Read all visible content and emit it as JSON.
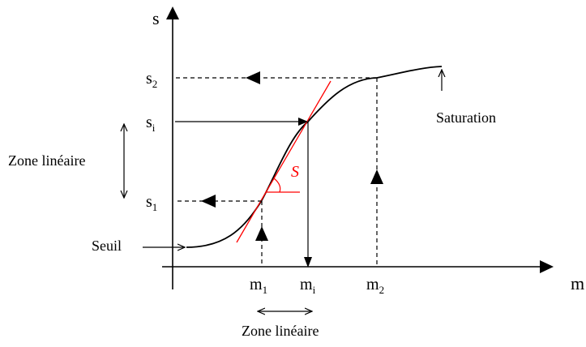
{
  "axes": {
    "y_label": "s",
    "x_label": "m"
  },
  "y_ticks": [
    {
      "base": "s",
      "sub": "2"
    },
    {
      "base": "s",
      "sub": "i"
    },
    {
      "base": "s",
      "sub": "1"
    }
  ],
  "x_ticks": [
    {
      "base": "m",
      "sub": "1"
    },
    {
      "base": "m",
      "sub": "i"
    },
    {
      "base": "m",
      "sub": "2"
    }
  ],
  "annotations": {
    "saturation": "Saturation",
    "seuil": "Seuil",
    "zone_lineaire_vertical": "Zone linéaire",
    "zone_lineaire_horizontal": "Zone linéaire",
    "slope": "S"
  },
  "colors": {
    "curve": "#000000",
    "tangent": "#ff0000",
    "dashed": "#000000"
  }
}
